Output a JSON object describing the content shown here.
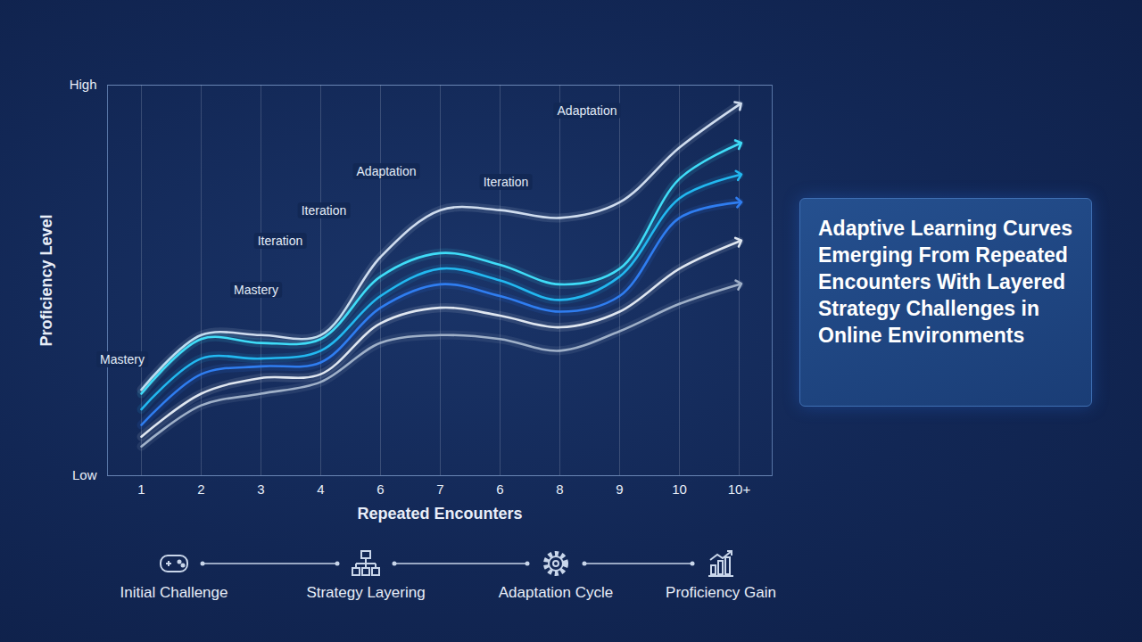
{
  "chart_data": {
    "type": "line",
    "title": "Adaptive Learning Curves Emerging From Repeated Encounters With Layered Strategy Challenges in Online Environments",
    "x_label": "Repeated Encounters",
    "y_label": "Proficiency Level",
    "categories": [
      "1",
      "2",
      "3",
      "4",
      "6",
      "7",
      "6",
      "8",
      "9",
      "10",
      "10+"
    ],
    "ylim": [
      0,
      10
    ],
    "yticks": [
      {
        "value": 0,
        "label": "Low"
      },
      {
        "value": 10,
        "label": "High"
      }
    ],
    "grid": true,
    "marker": "arrow",
    "series": [
      {
        "color": "#cfdcee",
        "values": [
          2.2,
          3.6,
          3.6,
          3.6,
          5.6,
          6.8,
          6.8,
          6.6,
          7.0,
          8.4,
          9.5
        ]
      },
      {
        "color": "#3fdcf7",
        "values": [
          2.1,
          3.5,
          3.4,
          3.5,
          5.1,
          5.7,
          5.4,
          4.9,
          5.3,
          7.6,
          8.5
        ]
      },
      {
        "color": "#22b8f0",
        "values": [
          1.7,
          3.0,
          3.0,
          3.2,
          4.6,
          5.3,
          5.0,
          4.5,
          5.1,
          7.1,
          7.7
        ]
      },
      {
        "color": "#2f7df0",
        "values": [
          1.3,
          2.6,
          2.8,
          2.9,
          4.3,
          4.9,
          4.6,
          4.2,
          4.6,
          6.6,
          7.0
        ]
      },
      {
        "color": "#dfe6f0",
        "values": [
          1.0,
          2.1,
          2.5,
          2.6,
          3.9,
          4.3,
          4.1,
          3.8,
          4.2,
          5.3,
          6.0
        ]
      },
      {
        "color": "#9fb0c8",
        "values": [
          0.75,
          1.8,
          2.1,
          2.4,
          3.4,
          3.6,
          3.5,
          3.2,
          3.7,
          4.4,
          4.9
        ]
      }
    ],
    "annotations": [
      "Mastery",
      "Mastery",
      "Iteration",
      "Iteration",
      "Iteration",
      "Adaptation",
      "Adaptation"
    ],
    "steps": [
      "Initial Challenge",
      "Strategy Layering",
      "Adaptation Cycle",
      "Proficiency Gain"
    ]
  }
}
